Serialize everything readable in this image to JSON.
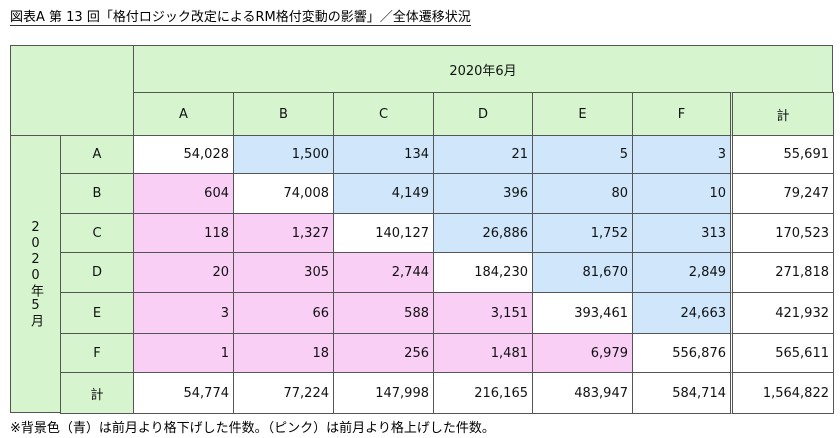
{
  "title": "図表A 第 13 回「格付ロジック改定によるRM格付変動の影響」／全体遷移状況",
  "table": {
    "column_group": "2020年6月",
    "row_group": "2020年5月",
    "columns": [
      "A",
      "B",
      "C",
      "D",
      "E",
      "F",
      "計"
    ],
    "rows": [
      {
        "label": "A",
        "cells": [
          "54,028",
          "1,500",
          "134",
          "21",
          "5",
          "3",
          "55,691"
        ]
      },
      {
        "label": "B",
        "cells": [
          "604",
          "74,008",
          "4,149",
          "396",
          "80",
          "10",
          "79,247"
        ]
      },
      {
        "label": "C",
        "cells": [
          "118",
          "1,327",
          "140,127",
          "26,886",
          "1,752",
          "313",
          "170,523"
        ]
      },
      {
        "label": "D",
        "cells": [
          "20",
          "305",
          "2,744",
          "184,230",
          "81,670",
          "2,849",
          "271,818"
        ]
      },
      {
        "label": "E",
        "cells": [
          "3",
          "66",
          "588",
          "3,151",
          "393,461",
          "24,663",
          "421,932"
        ]
      },
      {
        "label": "F",
        "cells": [
          "1",
          "18",
          "256",
          "1,481",
          "6,979",
          "556,876",
          "565,611"
        ]
      },
      {
        "label": "計",
        "cells": [
          "54,774",
          "77,224",
          "147,998",
          "216,165",
          "483,947",
          "584,714",
          "1,564,822"
        ]
      }
    ]
  },
  "footnote": "※背景色（青）は前月より格下げした件数。（ピンク）は前月より格上げした件数。"
}
